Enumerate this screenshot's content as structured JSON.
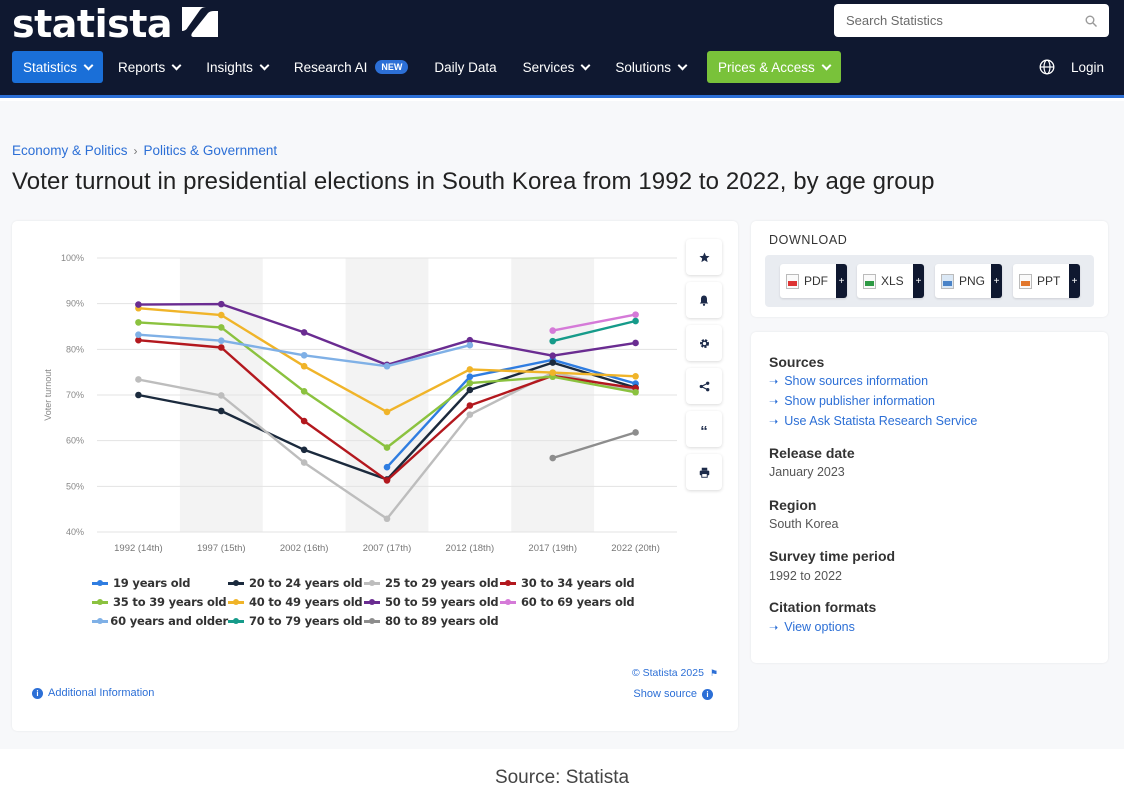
{
  "brand": {
    "name": "statista"
  },
  "search": {
    "placeholder": "Search Statistics"
  },
  "nav": {
    "items": [
      {
        "label": "Statistics",
        "dropdown": true
      },
      {
        "label": "Reports",
        "dropdown": true
      },
      {
        "label": "Insights",
        "dropdown": true
      },
      {
        "label": "Research AI",
        "badge": "NEW"
      },
      {
        "label": "Daily Data"
      },
      {
        "label": "Services",
        "dropdown": true
      },
      {
        "label": "Solutions",
        "dropdown": true
      },
      {
        "label": "Prices & Access",
        "dropdown": true
      }
    ],
    "login": "Login"
  },
  "breadcrumb": [
    "Economy & Politics",
    "Politics & Government"
  ],
  "title": "Voter turnout in presidential elections in South Korea from 1992 to 2022, by age group",
  "chart_data": {
    "type": "line",
    "title": "",
    "xlabel": "",
    "ylabel": "Voter turnout",
    "ylim": [
      40,
      100
    ],
    "yticks": [
      "40%",
      "50%",
      "60%",
      "70%",
      "80%",
      "90%",
      "100%"
    ],
    "ytick_values": [
      40,
      50,
      60,
      70,
      80,
      90,
      100
    ],
    "categories": [
      "1992 (14th)",
      "1997 (15th)",
      "2002 (16th)",
      "2007 (17th)",
      "2012 (18th)",
      "2017 (19th)",
      "2022 (20th)"
    ],
    "shaded_categories": [
      1,
      3,
      5
    ],
    "grid": true,
    "legend_position": "bottom",
    "series": [
      {
        "name": "19 years old",
        "color": "#2f7de1",
        "values": [
          null,
          null,
          null,
          54.2,
          74.0,
          77.7,
          72.5
        ]
      },
      {
        "name": "20 to 24 years old",
        "color": "#1b2a3d",
        "values": [
          70.0,
          66.5,
          58.0,
          51.5,
          71.1,
          77.1,
          71.6
        ]
      },
      {
        "name": "25 to 29 years old",
        "color": "#bdbdbd",
        "values": [
          73.4,
          69.9,
          55.2,
          42.9,
          65.7,
          74.9,
          70.9
        ]
      },
      {
        "name": "30 to 34 years old",
        "color": "#b3181e",
        "values": [
          82.0,
          80.4,
          64.3,
          51.3,
          67.7,
          74.2,
          71.5
        ]
      },
      {
        "name": "35 to 39 years old",
        "color": "#8bc23f",
        "values": [
          85.9,
          84.8,
          70.8,
          58.5,
          72.6,
          74.0,
          70.6
        ]
      },
      {
        "name": "40 to 49 years old",
        "color": "#f0b429",
        "values": [
          89.0,
          87.5,
          76.3,
          66.3,
          75.6,
          74.9,
          74.1
        ]
      },
      {
        "name": "50 to 59 years old",
        "color": "#6a2c91",
        "values": [
          89.8,
          89.9,
          83.7,
          76.6,
          82.0,
          78.6,
          81.4
        ]
      },
      {
        "name": "60 to 69 years old",
        "color": "#d57ad8",
        "values": [
          null,
          null,
          null,
          null,
          null,
          84.1,
          87.6
        ]
      },
      {
        "name": "60 years and older",
        "color": "#7fb0e6",
        "values": [
          83.2,
          81.9,
          78.7,
          76.3,
          80.9,
          null,
          null
        ]
      },
      {
        "name": "70 to 79 years old",
        "color": "#169b8a",
        "values": [
          null,
          null,
          null,
          null,
          null,
          81.8,
          86.2
        ]
      },
      {
        "name": "80 to 89 years old",
        "color": "#8d8d8d",
        "values": [
          null,
          null,
          null,
          null,
          null,
          56.2,
          61.8
        ]
      }
    ]
  },
  "chart_footer": {
    "copyright": "© Statista 2025",
    "show_source": "Show source",
    "additional_info": "Additional Information"
  },
  "download": {
    "title": "DOWNLOAD",
    "formats": [
      "PDF",
      "XLS",
      "PNG",
      "PPT"
    ]
  },
  "info": {
    "sources_heading": "Sources",
    "sources_links": [
      "Show sources information",
      "Show publisher information",
      "Use Ask Statista Research Service"
    ],
    "release_heading": "Release date",
    "release_value": "January 2023",
    "region_heading": "Region",
    "region_value": "South Korea",
    "survey_heading": "Survey time period",
    "survey_value": "1992 to 2022",
    "citation_heading": "Citation formats",
    "citation_link": "View options"
  },
  "caption": "Source: Statista"
}
